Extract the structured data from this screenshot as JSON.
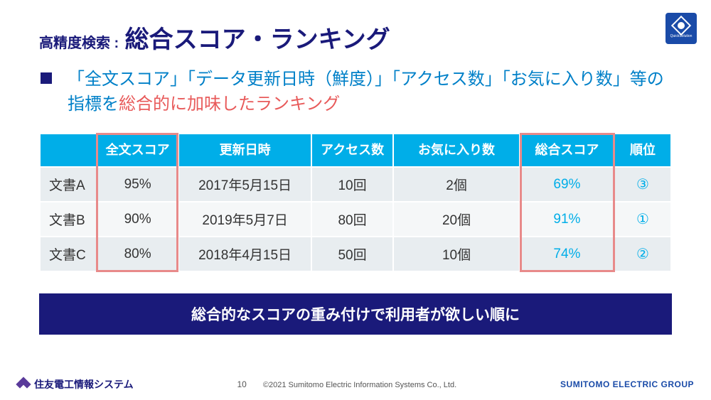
{
  "title": {
    "prefix": "高精度検索 :",
    "main": "総合スコア・ランキング"
  },
  "bullet": {
    "part1": "「全文スコア」「データ更新日時（鮮度）」「アクセス数」「お気に入り数」等の指標を",
    "accent": "総合的に加味したランキング"
  },
  "table": {
    "headers": {
      "doc": "",
      "score": "全文スコア",
      "date": "更新日時",
      "access": "アクセス数",
      "fav": "お気に入り数",
      "total": "総合スコア",
      "rank": "順位"
    },
    "rows": [
      {
        "doc": "文書A",
        "score": "95%",
        "date": "2017年5月15日",
        "access": "10回",
        "fav": "2個",
        "total": "69%",
        "rank": "③"
      },
      {
        "doc": "文書B",
        "score": "90%",
        "date": "2019年5月7日",
        "access": "80回",
        "fav": "20個",
        "total": "91%",
        "rank": "①"
      },
      {
        "doc": "文書C",
        "score": "80%",
        "date": "2018年4月15日",
        "access": "50回",
        "fav": "10個",
        "total": "74%",
        "rank": "②"
      }
    ],
    "header_bg": "#00aee8",
    "header_fg": "#ffffff",
    "row_odd_bg": "#e8edf0",
    "row_even_bg": "#f5f7f8",
    "highlight_fg": "#00aee8",
    "highlight_border": "#e88a8a"
  },
  "banner": "総合的なスコアの重み付けで利用者が欲しい順に",
  "footer": {
    "left": "住友電工情報システム",
    "pagenum": "10",
    "copyright": "©2021 Sumitomo Electric Information Systems Co., Ltd.",
    "right": "SUMITOMO ELECTRIC GROUP"
  },
  "colors": {
    "brand_navy": "#1a1a7a",
    "brand_blue": "#0080c8",
    "accent_red": "#e85a5a"
  }
}
